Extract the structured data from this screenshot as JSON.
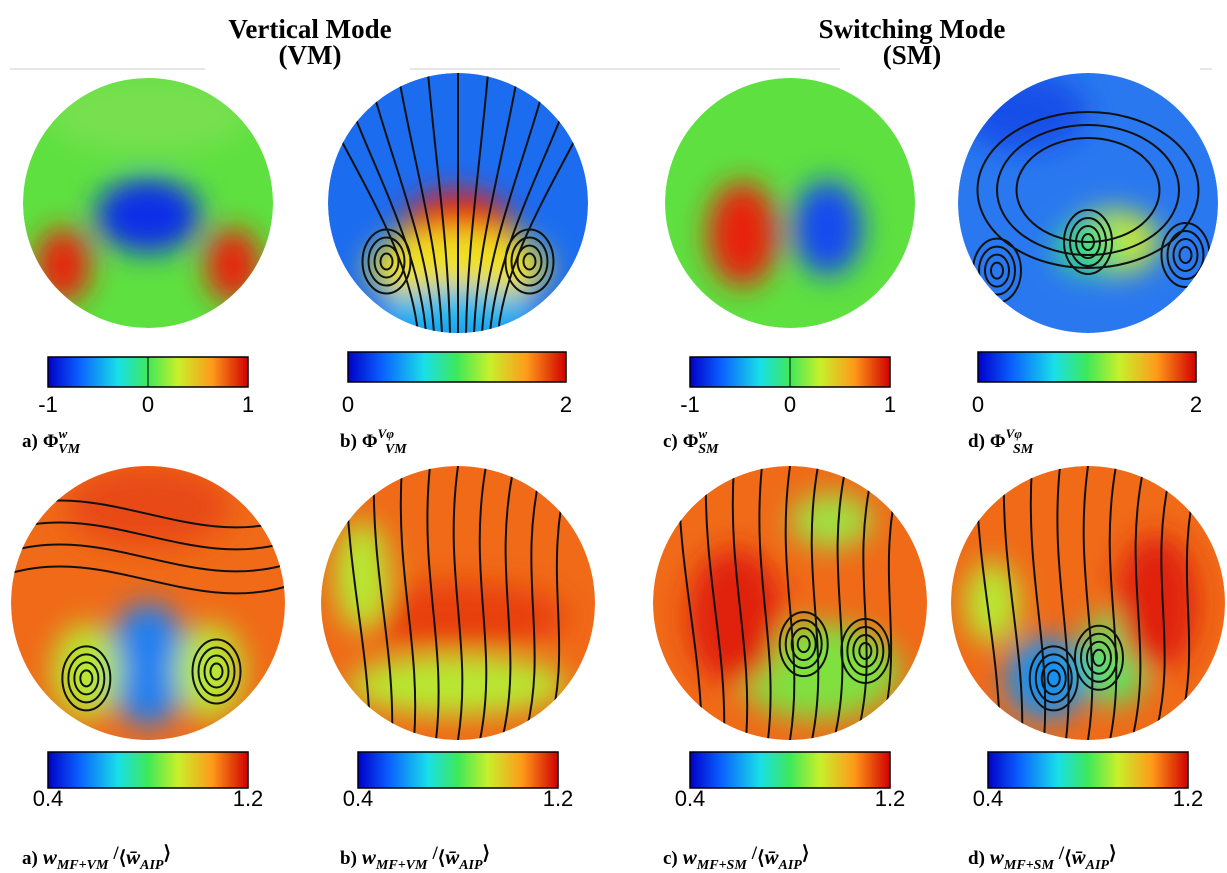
{
  "headers": [
    {
      "line1": "Vertical Mode",
      "line2": "(VM)"
    },
    {
      "line1": "Switching Mode",
      "line2": "(SM)"
    }
  ],
  "top_row": [
    {
      "colorbar": {
        "range": [
          -1,
          1
        ],
        "ticks": [
          -1,
          0,
          1
        ]
      },
      "caption": {
        "label": "a)",
        "symbol": "Φ",
        "sup": "w",
        "sub": "VM"
      }
    },
    {
      "colorbar": {
        "range": [
          0,
          2
        ],
        "ticks": [
          0,
          2
        ]
      },
      "caption": {
        "label": "b)",
        "symbol": "Φ",
        "sup": "Vφ",
        "sub": "VM"
      }
    },
    {
      "colorbar": {
        "range": [
          -1,
          1
        ],
        "ticks": [
          -1,
          0,
          1
        ]
      },
      "caption": {
        "label": "c)",
        "symbol": "Φ",
        "sup": "w",
        "sub": "SM"
      }
    },
    {
      "colorbar": {
        "range": [
          0,
          2
        ],
        "ticks": [
          0,
          2
        ]
      },
      "caption": {
        "label": "d)",
        "symbol": "Φ",
        "sup": "Vφ",
        "sub": "SM"
      }
    }
  ],
  "bottom_row": [
    {
      "colorbar": {
        "range": [
          0.4,
          1.2
        ],
        "ticks": [
          0.4,
          1.2
        ]
      },
      "caption": {
        "label": "a)",
        "var": "w",
        "sub": "MF+VM",
        "slash": "/",
        "open": "⟨",
        "den_var": "w̄",
        "den_sub": "AIP",
        "close": "⟩"
      }
    },
    {
      "colorbar": {
        "range": [
          0.4,
          1.2
        ],
        "ticks": [
          0.4,
          1.2
        ]
      },
      "caption": {
        "label": "b)",
        "var": "w",
        "sub": "MF+VM",
        "slash": "/",
        "open": "⟨",
        "den_var": "w̄",
        "den_sub": "AIP",
        "close": "⟩"
      }
    },
    {
      "colorbar": {
        "range": [
          0.4,
          1.2
        ],
        "ticks": [
          0.4,
          1.2
        ]
      },
      "caption": {
        "label": "c)",
        "var": "w",
        "sub": "MF+SM",
        "slash": "/",
        "open": "⟨",
        "den_var": "w̄",
        "den_sub": "AIP",
        "close": "⟩"
      }
    },
    {
      "colorbar": {
        "range": [
          0.4,
          1.2
        ],
        "ticks": [
          0.4,
          1.2
        ]
      },
      "caption": {
        "label": "d)",
        "var": "w",
        "sub": "MF+SM",
        "slash": "/",
        "open": "⟨",
        "den_var": "w̄",
        "den_sub": "AIP",
        "close": "⟩"
      }
    }
  ]
}
